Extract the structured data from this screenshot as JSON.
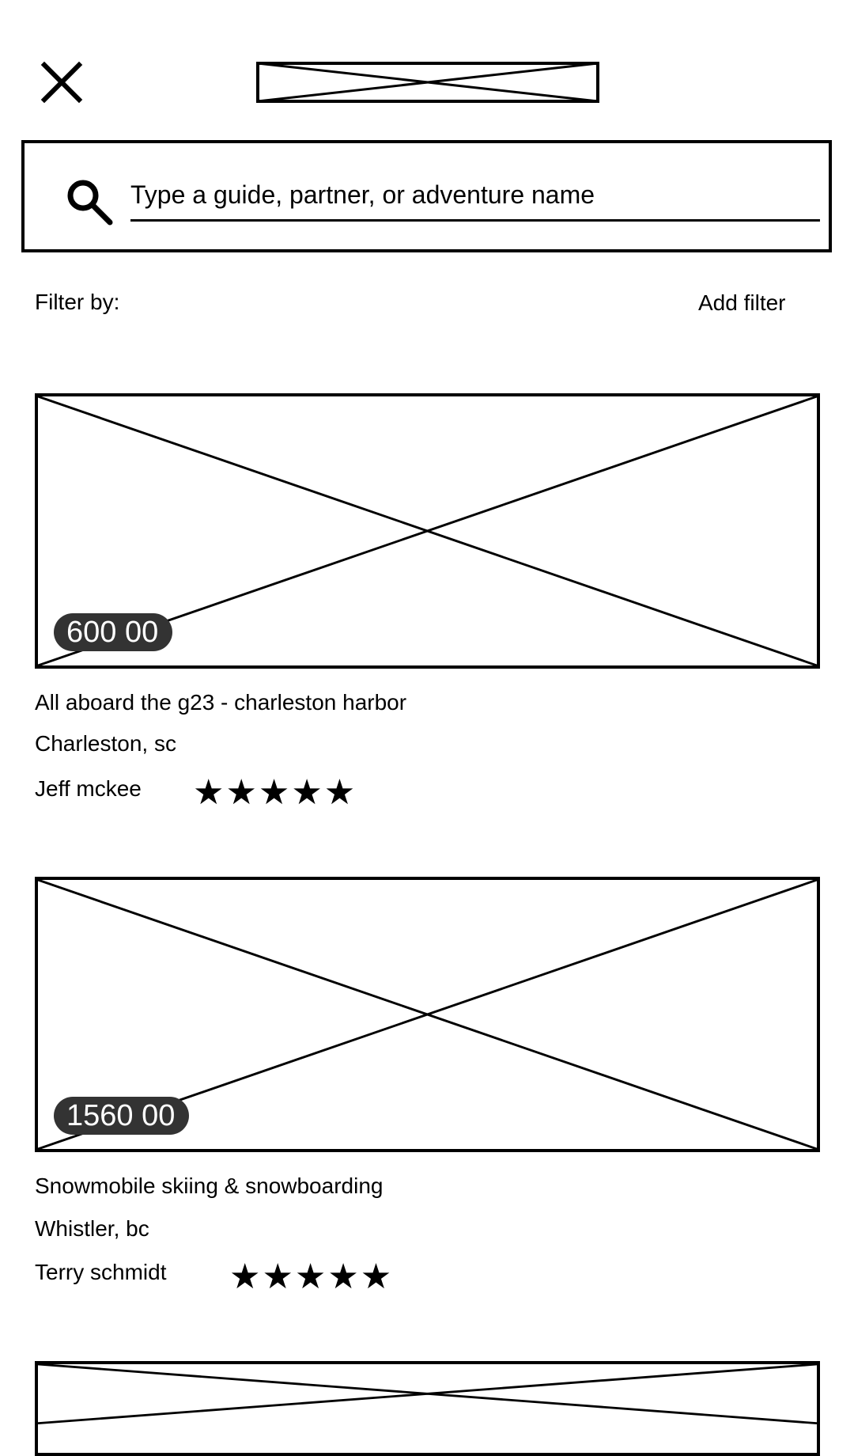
{
  "search": {
    "placeholder": "Type a guide, partner, or adventure name"
  },
  "filters": {
    "label": "Filter by:",
    "add_label": "Add filter"
  },
  "listings": [
    {
      "price": "600 00",
      "title": "All aboard the g23 - charleston harbor",
      "location": "Charleston, sc",
      "guide": "Jeff mckee",
      "rating": 5,
      "stars": "★★★★★"
    },
    {
      "price": "1560 00",
      "title": "Snowmobile skiing & snowboarding",
      "location": "Whistler, bc",
      "guide": "Terry schmidt",
      "rating": 5,
      "stars": "★★★★★"
    }
  ],
  "icons": {
    "close": "close-icon",
    "search": "search-icon",
    "star": "star-icon"
  }
}
